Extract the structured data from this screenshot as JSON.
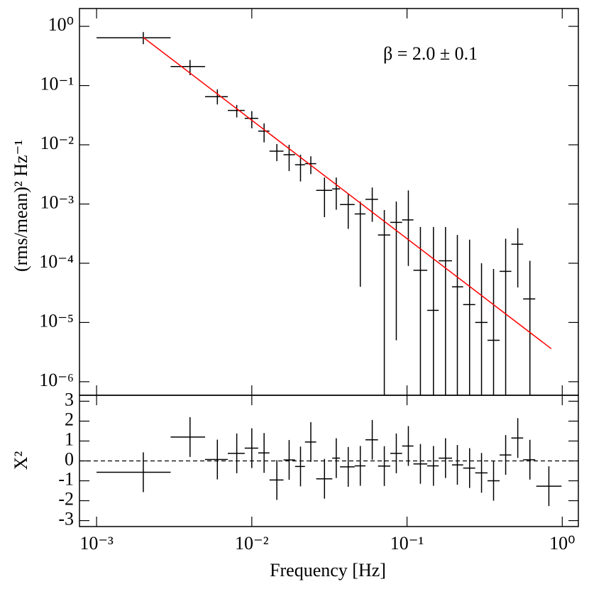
{
  "chart_data": [
    {
      "type": "errorbar",
      "log_x": true,
      "log_y": true,
      "color": "#000000",
      "ylabel": "(rms/mean)² Hz⁻¹",
      "annotation": "β = 2.0 ± 0.1",
      "annotation_color": "#ff0000",
      "xlim": [
        0.000776,
        1.27
      ],
      "ylim": [
        5.9e-07,
        2.0
      ],
      "yticks": [
        {
          "value": 1e-06,
          "label": "10⁻⁶"
        },
        {
          "value": 1e-05,
          "label": "10⁻⁵"
        },
        {
          "value": 0.0001,
          "label": "10⁻⁴"
        },
        {
          "value": 0.001,
          "label": "10⁻³"
        },
        {
          "value": 0.01,
          "label": "10⁻²"
        },
        {
          "value": 0.1,
          "label": "10⁻¹"
        },
        {
          "value": 1,
          "label": "10⁰"
        }
      ],
      "x": [
        0.002,
        0.004,
        0.006,
        0.008,
        0.01,
        0.012,
        0.0145,
        0.0174,
        0.0206,
        0.024,
        0.0294,
        0.035,
        0.0418,
        0.05,
        0.0597,
        0.0714,
        0.0853,
        0.102,
        0.122,
        0.148,
        0.177,
        0.211,
        0.253,
        0.302,
        0.361,
        0.432,
        0.517,
        0.619
      ],
      "xlow": [
        0.001,
        0.003,
        0.005,
        0.007,
        0.009,
        0.011,
        0.013,
        0.016,
        0.019,
        0.022,
        0.026,
        0.033,
        0.037,
        0.046,
        0.054,
        0.065,
        0.078,
        0.093,
        0.11,
        0.135,
        0.16,
        0.195,
        0.23,
        0.275,
        0.33,
        0.395,
        0.47,
        0.56
      ],
      "xhigh": [
        0.003,
        0.005,
        0.007,
        0.009,
        0.011,
        0.013,
        0.016,
        0.019,
        0.022,
        0.026,
        0.033,
        0.037,
        0.046,
        0.054,
        0.065,
        0.078,
        0.093,
        0.11,
        0.135,
        0.16,
        0.195,
        0.23,
        0.275,
        0.33,
        0.395,
        0.47,
        0.56,
        0.67
      ],
      "values": [
        0.64,
        0.21,
        0.065,
        0.038,
        0.028,
        0.017,
        0.0078,
        0.0068,
        0.0046,
        0.0048,
        0.0017,
        0.0018,
        0.00098,
        0.00068,
        0.0012,
        0.0003,
        0.00049,
        0.00054,
        7.6e-05,
        1.6e-05,
        0.00011,
        4e-05,
        2e-05,
        1e-05,
        5e-06,
        7.3e-05,
        0.00021,
        2.5e-05
      ],
      "ylow": [
        0.5,
        0.15,
        0.048,
        0.029,
        0.019,
        0.011,
        0.0053,
        0.0036,
        0.0024,
        0.0032,
        0.0006,
        0.0008,
        0.00038,
        4e-05,
        0.0005,
        0,
        5e-06,
        9e-05,
        0,
        0,
        0,
        0,
        0,
        0,
        0,
        0,
        3.9e-05,
        0
      ],
      "yhigh": [
        0.8,
        0.27,
        0.086,
        0.047,
        0.037,
        0.023,
        0.0103,
        0.01,
        0.0068,
        0.0064,
        0.0028,
        0.0028,
        0.0015,
        0.0011,
        0.0019,
        0.00079,
        0.0011,
        0.0017,
        0.00041,
        0.00041,
        0.00041,
        0.0003,
        0.00025,
        0.0001,
        8e-05,
        0.00026,
        0.00039,
        0.00011
      ],
      "fit": {
        "color": "#ff0000",
        "x": [
          0.002,
          0.85
        ],
        "values": [
          0.65,
          3.6e-06
        ]
      }
    },
    {
      "type": "residuals",
      "log_x": true,
      "color": "#000000",
      "xlabel": "Frequency [Hz]",
      "ylabel": "X²",
      "xlim": [
        0.000776,
        1.27
      ],
      "ylim": [
        -3.3,
        3.3
      ],
      "xticks": [
        {
          "value": 0.001,
          "label": "10⁻³"
        },
        {
          "value": 0.01,
          "label": "10⁻²"
        },
        {
          "value": 0.1,
          "label": "10⁻¹"
        },
        {
          "value": 1,
          "label": "10⁰"
        }
      ],
      "yticks": [
        -3,
        -2,
        -1,
        0,
        1,
        2,
        3
      ],
      "x": [
        0.002,
        0.004,
        0.006,
        0.008,
        0.01,
        0.012,
        0.0145,
        0.0174,
        0.0206,
        0.024,
        0.0294,
        0.035,
        0.0418,
        0.05,
        0.0597,
        0.0714,
        0.0853,
        0.102,
        0.122,
        0.148,
        0.177,
        0.211,
        0.253,
        0.302,
        0.361,
        0.432,
        0.517,
        0.619,
        0.82
      ],
      "xlow": [
        0.001,
        0.003,
        0.005,
        0.007,
        0.009,
        0.011,
        0.013,
        0.016,
        0.019,
        0.022,
        0.026,
        0.033,
        0.037,
        0.046,
        0.054,
        0.065,
        0.078,
        0.093,
        0.11,
        0.135,
        0.16,
        0.195,
        0.23,
        0.275,
        0.33,
        0.395,
        0.47,
        0.56,
        0.68
      ],
      "xhigh": [
        0.003,
        0.005,
        0.007,
        0.009,
        0.011,
        0.013,
        0.016,
        0.019,
        0.022,
        0.026,
        0.033,
        0.037,
        0.046,
        0.054,
        0.065,
        0.078,
        0.093,
        0.11,
        0.135,
        0.16,
        0.195,
        0.23,
        0.275,
        0.33,
        0.395,
        0.47,
        0.56,
        0.67,
        0.99
      ],
      "values": [
        -0.57,
        1.2,
        0.07,
        0.38,
        0.64,
        0.4,
        -0.96,
        0.05,
        -0.28,
        0.95,
        -0.9,
        0.14,
        -0.3,
        -0.25,
        1.06,
        -0.26,
        0.38,
        0.75,
        -0.15,
        -0.25,
        0.14,
        -0.2,
        -0.36,
        -0.6,
        -1.0,
        0.3,
        1.15,
        0.06,
        -1.27
      ],
      "yerr": [
        1,
        1,
        1,
        1,
        1,
        1,
        1,
        1,
        1,
        1,
        1,
        1,
        1,
        1,
        1,
        1,
        1,
        1,
        1,
        1,
        1,
        1,
        1,
        1,
        1,
        1,
        1,
        1,
        1
      ]
    }
  ]
}
